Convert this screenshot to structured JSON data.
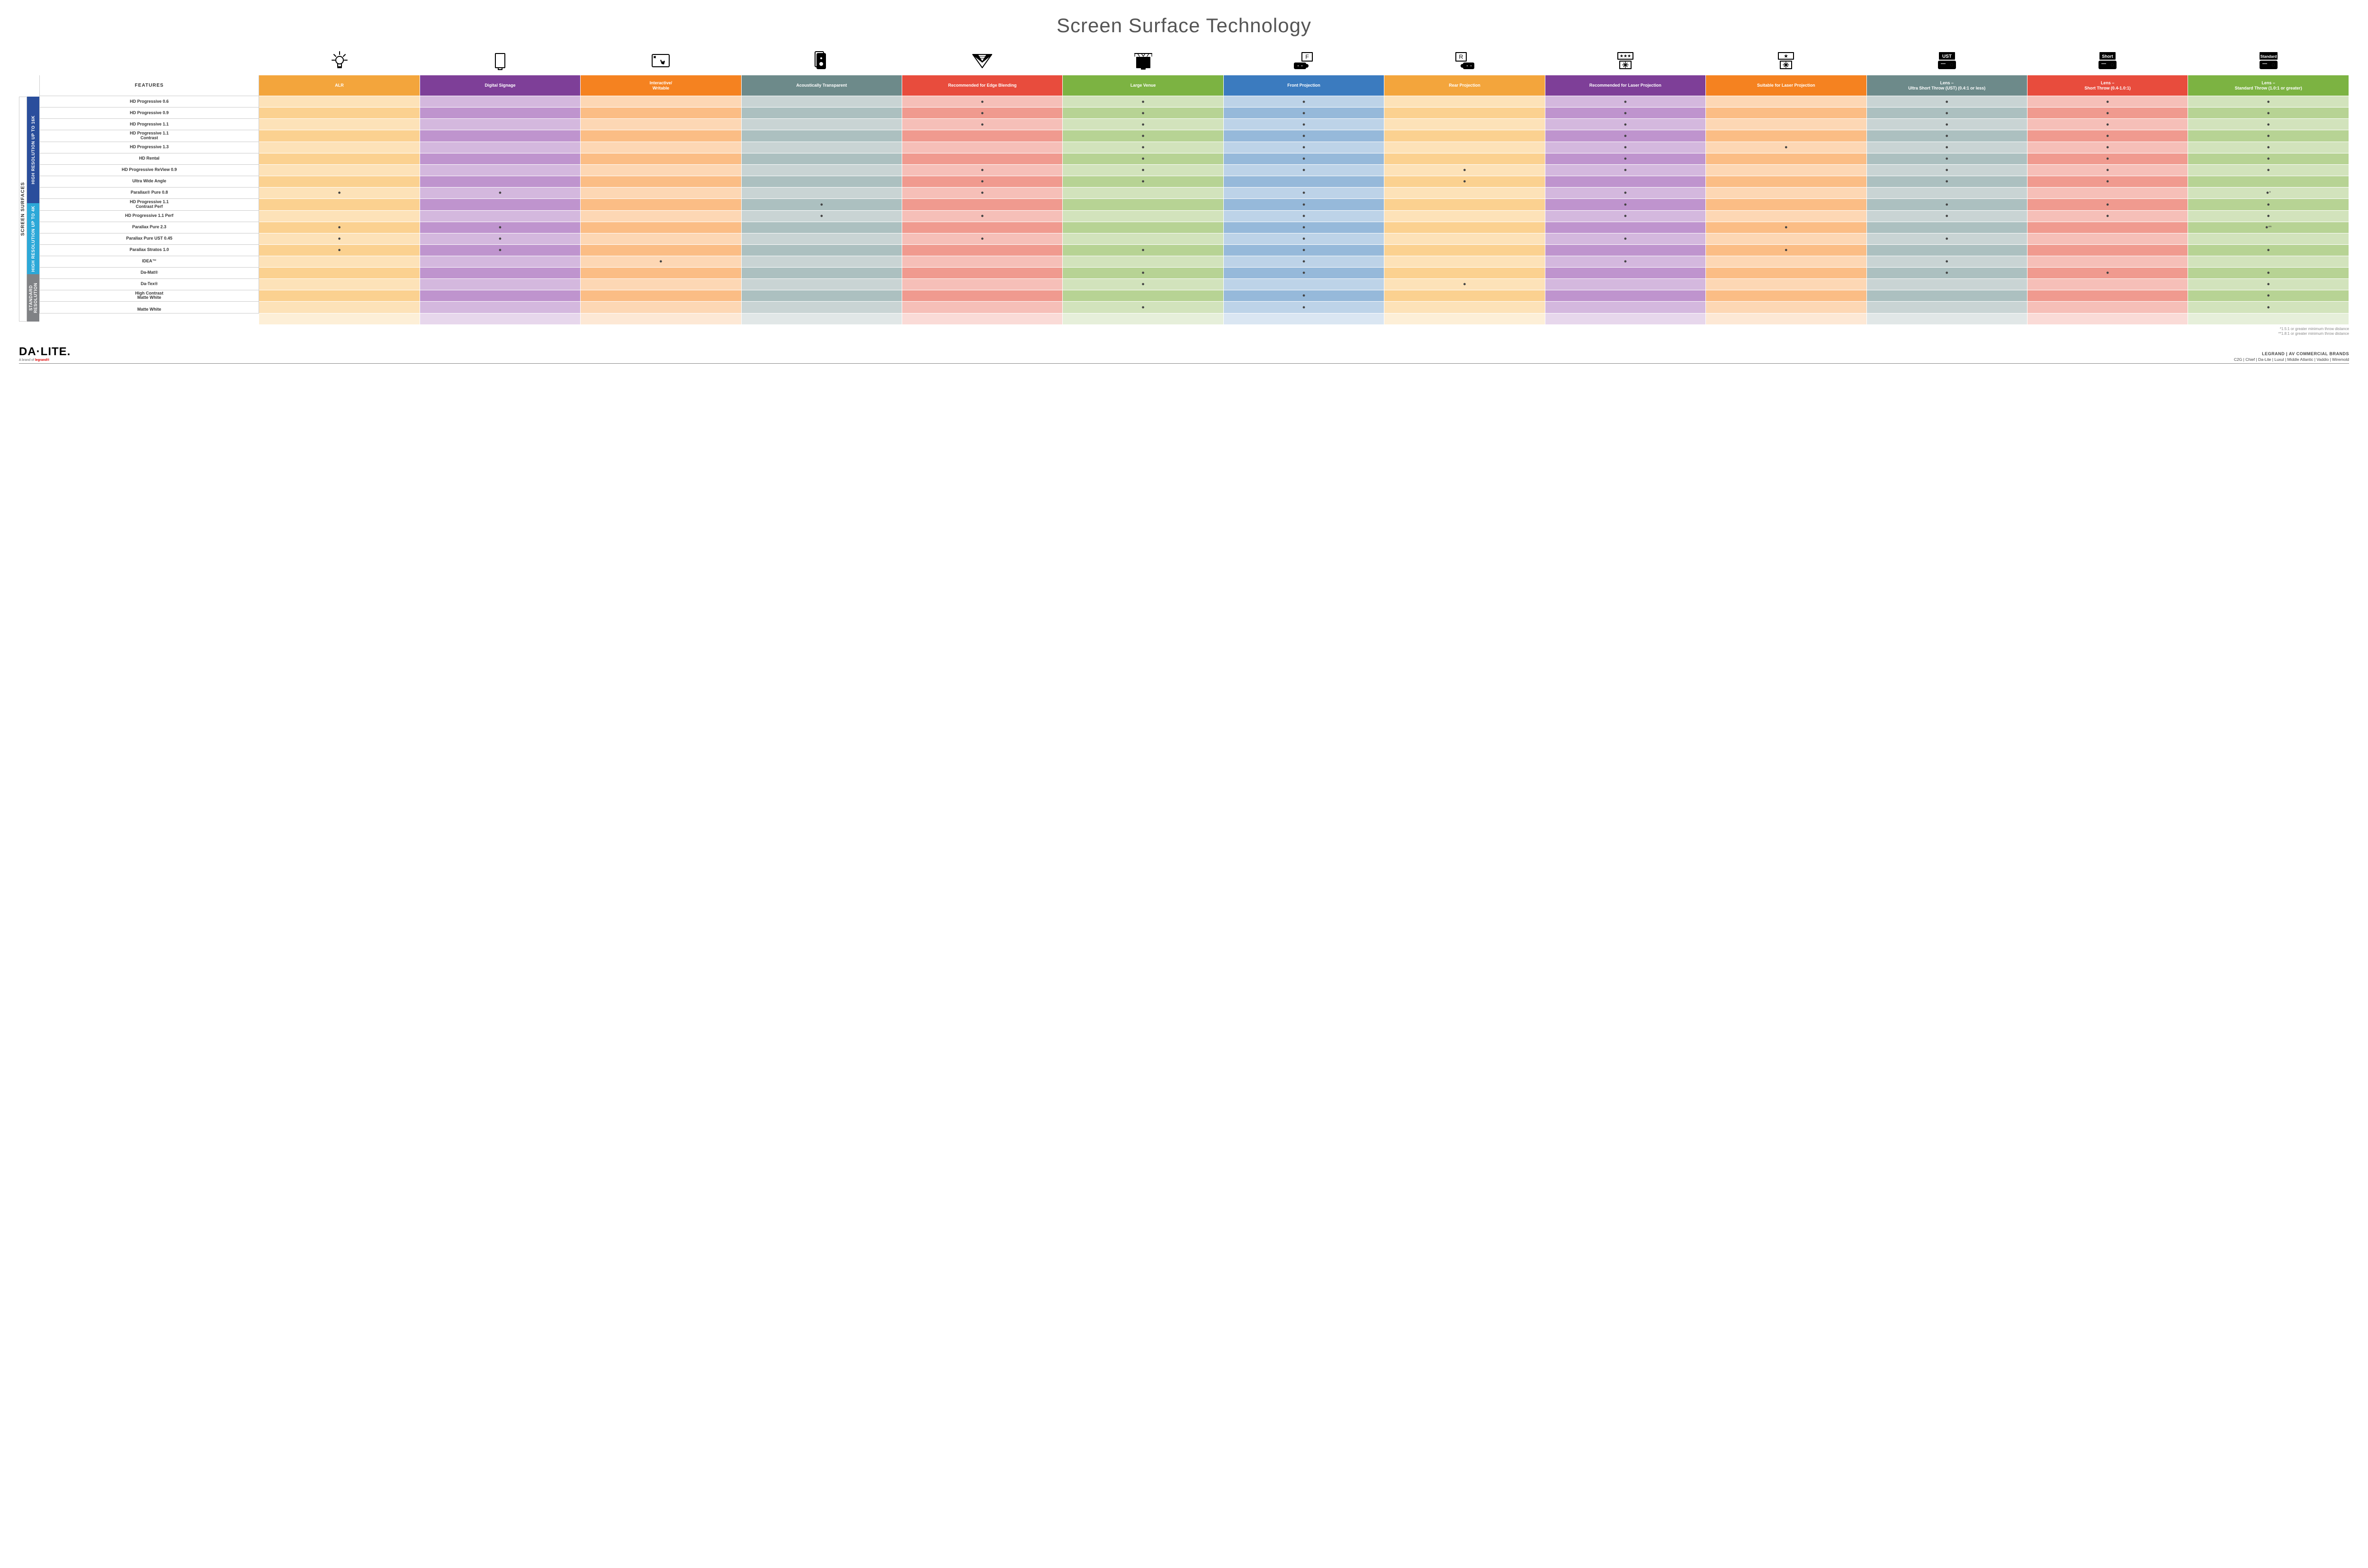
{
  "title": "Screen Surface Technology",
  "sideLabel": "SCREEN SURFACES",
  "groups": [
    {
      "label": "HIGH RESOLUTION UP TO 16K",
      "bg": "#2a4e9c",
      "rows": 9
    },
    {
      "label": "HIGH RESOLUTION UP TO 4K",
      "bg": "#2ca8d8",
      "rows": 6
    },
    {
      "label": "STANDARD RESOLUTION",
      "bg": "#808285",
      "rows": 4
    }
  ],
  "columns": [
    {
      "label": "FEATURES",
      "bg": "#ffffff",
      "tintA": "#ffffff",
      "tintB": "#ffffff"
    },
    {
      "label": "ALR",
      "bg": "#f3a53c",
      "tintA": "#fde2b8",
      "tintB": "#fbd190"
    },
    {
      "label": "Digital Signage",
      "bg": "#7e3f98",
      "tintA": "#d4b8de",
      "tintB": "#bf94ce"
    },
    {
      "label": "Interactive/ Writable",
      "bg": "#f58220",
      "tintA": "#fdd7b4",
      "tintB": "#fbbd85"
    },
    {
      "label": "Acoustically Transparent",
      "bg": "#6d8a8a",
      "tintA": "#c9d4d4",
      "tintB": "#acc0c0"
    },
    {
      "label": "Recommended for Edge Blending",
      "bg": "#e84c3d",
      "tintA": "#f6bfb8",
      "tintB": "#f09a8f"
    },
    {
      "label": "Large Venue",
      "bg": "#7cb342",
      "tintA": "#d2e3bc",
      "tintB": "#b7d394"
    },
    {
      "label": "Front Projection",
      "bg": "#3b7bbf",
      "tintA": "#bdd3e8",
      "tintB": "#96b9da"
    },
    {
      "label": "Rear Projection",
      "bg": "#f3a53c",
      "tintA": "#fde2b8",
      "tintB": "#fbd190"
    },
    {
      "label": "Recommended for Laser Projection",
      "bg": "#7e3f98",
      "tintA": "#d4b8de",
      "tintB": "#bf94ce"
    },
    {
      "label": "Suitable for Laser Projection",
      "bg": "#f58220",
      "tintA": "#fdd7b4",
      "tintB": "#fbbd85"
    },
    {
      "label": "Lens – Ultra Short Throw (UST) (0.4:1 or less)",
      "bg": "#6d8a8a",
      "tintA": "#c9d4d4",
      "tintB": "#acc0c0"
    },
    {
      "label": "Lens – Short Throw (0.4-1.0:1)",
      "bg": "#e84c3d",
      "tintA": "#f6bfb8",
      "tintB": "#f09a8f"
    },
    {
      "label": "Lens – Standard Throw (1.0:1 or greater)",
      "bg": "#7cb342",
      "tintA": "#d2e3bc",
      "tintB": "#b7d394"
    }
  ],
  "rows": [
    {
      "label": "HD Progressive 0.6",
      "cells": [
        "",
        "",
        "",
        "",
        "•",
        "•",
        "•",
        "",
        "•",
        "",
        "•",
        "•",
        "•"
      ]
    },
    {
      "label": "HD Progressive 0.9",
      "cells": [
        "",
        "",
        "",
        "",
        "•",
        "•",
        "•",
        "",
        "•",
        "",
        "•",
        "•",
        "•"
      ]
    },
    {
      "label": "HD Progressive 1.1",
      "cells": [
        "",
        "",
        "",
        "",
        "•",
        "•",
        "•",
        "",
        "•",
        "",
        "•",
        "•",
        "•"
      ]
    },
    {
      "label": "HD Progressive 1.1 Contrast",
      "cells": [
        "",
        "",
        "",
        "",
        "",
        "•",
        "•",
        "",
        "•",
        "",
        "•",
        "•",
        "•"
      ]
    },
    {
      "label": "HD Progressive 1.3",
      "cells": [
        "",
        "",
        "",
        "",
        "",
        "•",
        "•",
        "",
        "•",
        "•",
        "•",
        "•",
        "•"
      ]
    },
    {
      "label": "HD Rental",
      "cells": [
        "",
        "",
        "",
        "",
        "",
        "•",
        "•",
        "",
        "•",
        "",
        "•",
        "•",
        "•"
      ]
    },
    {
      "label": "HD Progressive ReView 0.9",
      "cells": [
        "",
        "",
        "",
        "",
        "•",
        "•",
        "•",
        "•",
        "•",
        "",
        "•",
        "•",
        "•"
      ]
    },
    {
      "label": "Ultra Wide Angle",
      "cells": [
        "",
        "",
        "",
        "",
        "•",
        "•",
        "",
        "•",
        "",
        "",
        "•",
        "•",
        ""
      ]
    },
    {
      "label": "Parallax® Pure 0.8",
      "cells": [
        "•",
        "•",
        "",
        "",
        "•",
        "",
        "•",
        "",
        "•",
        "",
        "",
        "",
        "•*"
      ]
    },
    {
      "label": "HD Progressive 1.1 Contrast Perf",
      "cells": [
        "",
        "",
        "",
        "•",
        "",
        "",
        "•",
        "",
        "•",
        "",
        "•",
        "•",
        "•"
      ]
    },
    {
      "label": "HD Progressive 1.1 Perf",
      "cells": [
        "",
        "",
        "",
        "•",
        "•",
        "",
        "•",
        "",
        "•",
        "",
        "•",
        "•",
        "•"
      ]
    },
    {
      "label": "Parallax Pure 2.3",
      "cells": [
        "•",
        "•",
        "",
        "",
        "",
        "",
        "•",
        "",
        "",
        "•",
        "",
        "",
        "•**"
      ]
    },
    {
      "label": "Parallax Pure UST 0.45",
      "cells": [
        "•",
        "•",
        "",
        "",
        "•",
        "",
        "•",
        "",
        "•",
        "",
        "•",
        "",
        ""
      ]
    },
    {
      "label": "Parallax Stratos 1.0",
      "cells": [
        "•",
        "•",
        "",
        "",
        "",
        "•",
        "•",
        "",
        "",
        "•",
        "",
        "",
        "•"
      ]
    },
    {
      "label": "IDEA™",
      "cells": [
        "",
        "",
        "•",
        "",
        "",
        "",
        "•",
        "",
        "•",
        "",
        "•",
        "",
        ""
      ]
    },
    {
      "label": "Da-Mat®",
      "cells": [
        "",
        "",
        "",
        "",
        "",
        "•",
        "•",
        "",
        "",
        "",
        "•",
        "•",
        "•"
      ]
    },
    {
      "label": "Da-Tex®",
      "cells": [
        "",
        "",
        "",
        "",
        "",
        "•",
        "",
        "•",
        "",
        "",
        "",
        "",
        "•"
      ]
    },
    {
      "label": "High Contrast Matte White",
      "cells": [
        "",
        "",
        "",
        "",
        "",
        "",
        "•",
        "",
        "",
        "",
        "",
        "",
        "•"
      ]
    },
    {
      "label": "Matte White",
      "cells": [
        "",
        "",
        "",
        "",
        "",
        "•",
        "•",
        "",
        "",
        "",
        "",
        "",
        "•"
      ]
    }
  ],
  "footnotes": [
    "*1.5:1 or greater minimum throw distance",
    "**1.8:1 or greater minimum throw distance"
  ],
  "footer": {
    "logoMain": "DA·LITE.",
    "logoSub1": "A brand of ",
    "logoSub2": "legrand®",
    "brandsTitle": "LEGRAND | AV COMMERCIAL BRANDS",
    "brandsList": "C2G  |  Chief  |  Da-Lite  |  Luxul  |  Middle Atlantic  |  Vaddio  |  Wiremold"
  },
  "icons": {
    "stroke": "#000000",
    "fill": "#000000"
  }
}
